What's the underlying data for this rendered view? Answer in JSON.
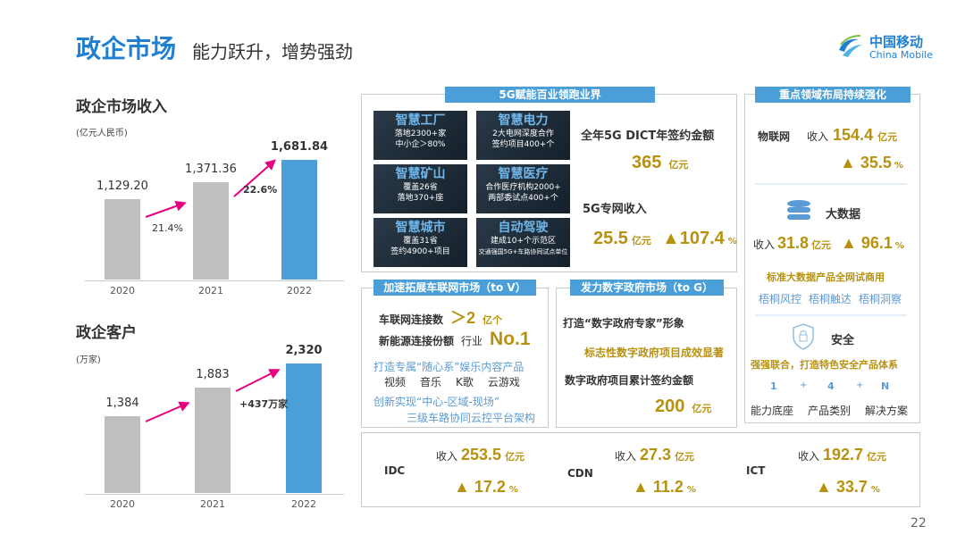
{
  "header": {
    "title": "政企市场",
    "subtitle": "能力跃升，增势强劲",
    "logo_cn": "中国移动",
    "logo_en": "China Mobile"
  },
  "chart_data": [
    {
      "type": "bar",
      "title": "政企市场收入",
      "unit": "(亿元人民币)",
      "categories": [
        "2020",
        "2021",
        "2022"
      ],
      "values": [
        1129.2,
        1371.36,
        1681.84
      ],
      "value_labels": [
        "1,129.20",
        "1,371.36",
        "1,681.84"
      ],
      "growth_labels": [
        "21.4%",
        "22.6%"
      ],
      "highlight_color": "#4a9fd8",
      "bar_color": "#bfbfbf"
    },
    {
      "type": "bar",
      "title": "政企客户",
      "unit": "(万家)",
      "categories": [
        "2020",
        "2021",
        "2022"
      ],
      "values": [
        1384,
        1883,
        2320
      ],
      "value_labels": [
        "1,384",
        "1,883",
        "2,320"
      ],
      "growth_labels": [
        "+437万家"
      ],
      "highlight_color": "#4a9fd8",
      "bar_color": "#bfbfbf"
    }
  ],
  "g5": {
    "header": "5G赋能百业领跑业界",
    "tiles": [
      {
        "title": "智慧工厂",
        "l1": "落地2300+家",
        "l2": "中小企＞80%"
      },
      {
        "title": "智慧电力",
        "l1": "2大电网深度合作",
        "l2": "签约项目400+个"
      },
      {
        "title": "智慧矿山",
        "l1": "覆盖26省",
        "l2": "落地370+座"
      },
      {
        "title": "智慧医疗",
        "l1": "合作医疗机构2000+",
        "l2": "两部委试点400+个"
      },
      {
        "title": "智慧城市",
        "l1": "覆盖31省",
        "l2": "签约4900+项目"
      },
      {
        "title": "自动驾驶",
        "l1": "建成10+个示范区",
        "l2": "交通强国5G+车路协同试点单位"
      }
    ],
    "dict_label": "全年5G DICT年签约金额",
    "dict_value": "365",
    "dict_unit": "亿元",
    "private_label": "5G专网收入",
    "private_value": "25.5",
    "private_unit": "亿元",
    "private_growth": "▲107.4",
    "pct": "%"
  },
  "tov": {
    "header": "加速拓展车联网市场（to V）",
    "conn_label": "车联网连接数",
    "conn_value": "＞2",
    "conn_unit": "亿个",
    "ev_label": "新能源连接份额",
    "ev_pre": "行业",
    "ev_value": "No.1",
    "ent": "打造专属“随心系”娱乐内容产品",
    "items": [
      "视频",
      "音乐",
      "K歌",
      "云游戏"
    ],
    "inno1": "创新实现“中心-区域-现场”",
    "inno2": "三级车路协同云控平台架构"
  },
  "tog": {
    "header": "发力数字政府市场（to G）",
    "l1": "打造“数字政府专家”形象",
    "l2": "标志性数字政府项目成效显著",
    "l3": "数字政府项目累计签约金额",
    "value": "200",
    "unit": "亿元"
  },
  "key": {
    "header": "重点领域布局持续强化",
    "iot": {
      "name": "物联网",
      "rev": "收入",
      "value": "154.4",
      "unit": "亿元",
      "growth": "▲ 35.5",
      "pct": "%"
    },
    "bigdata": {
      "name": "大数据",
      "rev": "收入",
      "value": "31.8",
      "unit": "亿元",
      "growth": "▲ 96.1",
      "pct": "%",
      "note": "标准大数据产品全网试商用",
      "products": [
        "梧桐风控",
        "梧桐触达",
        "梧桐洞察"
      ]
    },
    "security": {
      "name": "安全",
      "note": "强强联合，打造特色安全产品体系",
      "formula": [
        "1",
        "+",
        "4",
        "+",
        "N"
      ],
      "labels": [
        "能力底座",
        "产品类别",
        "解决方案"
      ]
    }
  },
  "bottom": [
    {
      "name": "IDC",
      "rev": "收入",
      "value": "253.5",
      "unit": "亿元",
      "growth": "▲ 17.2",
      "pct": "%"
    },
    {
      "name": "CDN",
      "rev": "收入",
      "value": "27.3",
      "unit": "亿元",
      "growth": "▲ 11.2",
      "pct": "%"
    },
    {
      "name": "ICT",
      "rev": "收入",
      "value": "192.7",
      "unit": "亿元",
      "growth": "▲ 33.7",
      "pct": "%"
    }
  ],
  "page_number": "22"
}
